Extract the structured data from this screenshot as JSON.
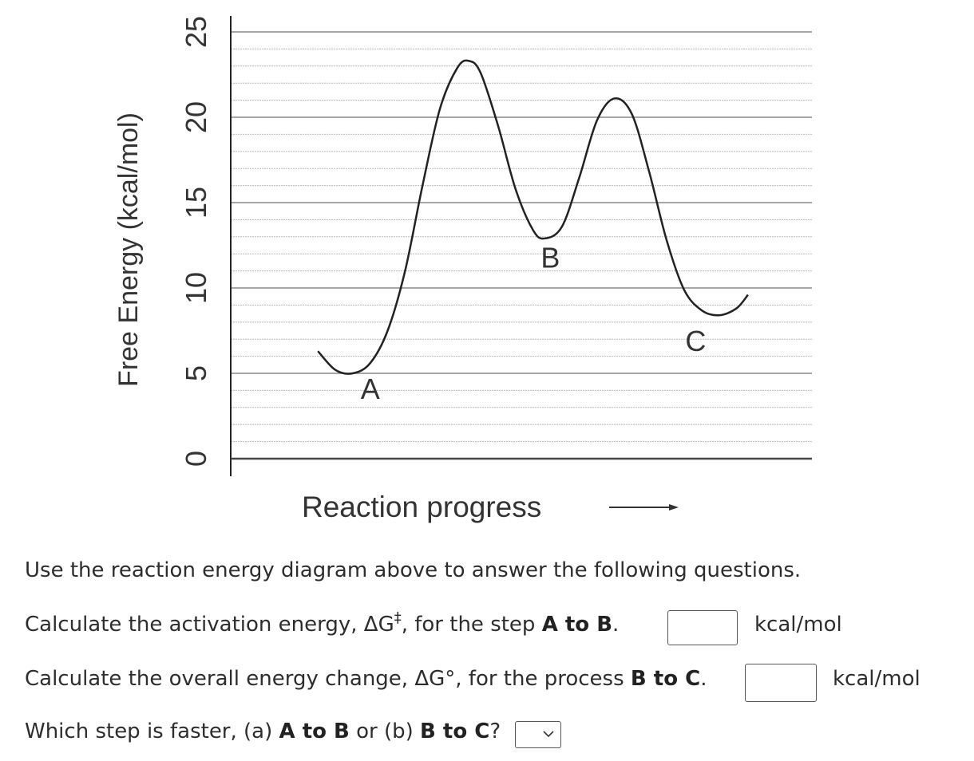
{
  "chart_data": {
    "type": "line",
    "ylabel": "Free Energy (kcal/mol)",
    "xlabel": "Reaction progress",
    "yticks": [
      "0",
      "5",
      "10",
      "15",
      "20",
      "25"
    ],
    "ylim": [
      0,
      25
    ],
    "grid": true,
    "points": [
      {
        "label": "A",
        "energy": 5
      },
      {
        "label": "peak",
        "energy": 23
      },
      {
        "label": "B",
        "energy": 13
      },
      {
        "label": "peak",
        "energy": 21
      },
      {
        "label": "C",
        "energy": 9
      }
    ],
    "curve": [
      [
        0.15,
        6.3
      ],
      [
        0.18,
        5.2
      ],
      [
        0.21,
        5.0
      ],
      [
        0.24,
        5.6
      ],
      [
        0.27,
        7.5
      ],
      [
        0.3,
        11
      ],
      [
        0.33,
        16
      ],
      [
        0.36,
        20.5
      ],
      [
        0.39,
        22.9
      ],
      [
        0.41,
        23.3
      ],
      [
        0.43,
        22.6
      ],
      [
        0.46,
        19.5
      ],
      [
        0.49,
        15.8
      ],
      [
        0.52,
        13.4
      ],
      [
        0.54,
        12.9
      ],
      [
        0.57,
        13.6
      ],
      [
        0.6,
        16.5
      ],
      [
        0.63,
        19.8
      ],
      [
        0.66,
        21.1
      ],
      [
        0.69,
        20.2
      ],
      [
        0.72,
        16.8
      ],
      [
        0.75,
        12.8
      ],
      [
        0.78,
        9.9
      ],
      [
        0.81,
        8.7
      ],
      [
        0.84,
        8.4
      ],
      [
        0.87,
        8.8
      ],
      [
        0.89,
        9.6
      ]
    ],
    "labels": [
      {
        "text": "A",
        "x": 0.24,
        "energy": 3.5
      },
      {
        "text": "B",
        "x": 0.55,
        "energy": 11.2
      },
      {
        "text": "C",
        "x": 0.8,
        "energy": 6.3
      }
    ]
  },
  "questions": {
    "intro": "Use the reaction energy diagram above to answer the following questions.",
    "q1_prefix": "Calculate the activation energy, ΔG",
    "q1_dagger": "‡",
    "q1_mid": ", for the step ",
    "q1_bold": "A to B",
    "q1_end": ".",
    "q1_unit": "kcal/mol",
    "q1_value": "",
    "q2_prefix": "Calculate the overall energy change, ΔG°, for the process ",
    "q2_bold": "B to C",
    "q2_end": ".",
    "q2_unit": "kcal/mol",
    "q2_value": "",
    "q3_prefix": "Which step is faster, (a) ",
    "q3_bold_a": "A to B",
    "q3_mid": " or (b) ",
    "q3_bold_b": "B to C",
    "q3_end": "?",
    "q3_selected": ""
  }
}
